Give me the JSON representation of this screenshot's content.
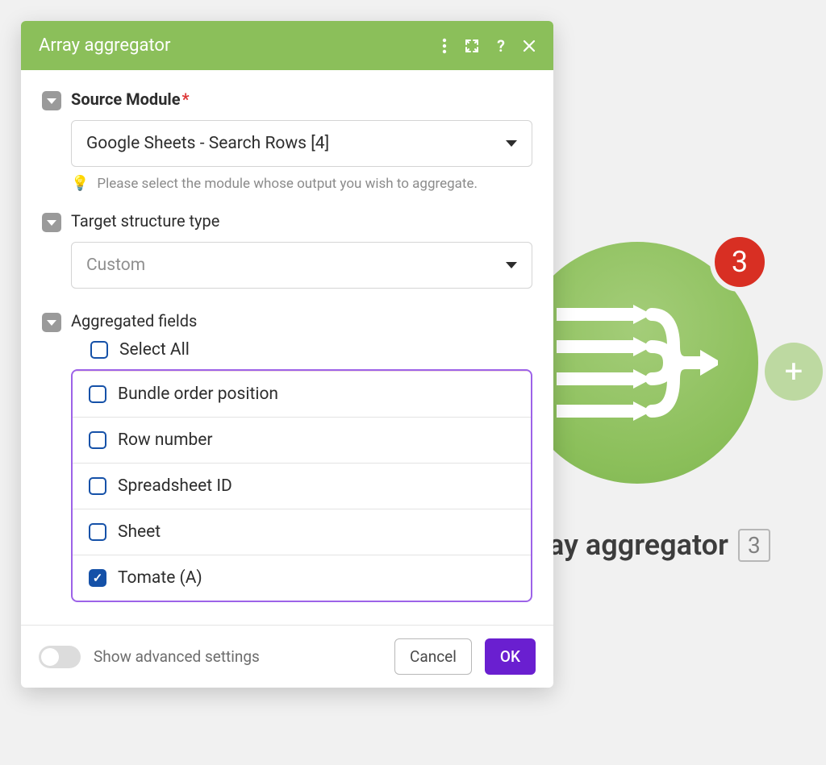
{
  "colors": {
    "header_bg": "#8bbf5a",
    "node_badge_bg": "#d82f23",
    "ok_button_bg": "#6a1fd0",
    "fields_box_border": "#9d63e8",
    "checkbox_color": "#1551a8",
    "page_bg": "#f1f1f1"
  },
  "panel": {
    "title": "Array aggregator"
  },
  "source_module": {
    "label": "Source Module",
    "required": true,
    "selected": "Google Sheets - Search Rows [4]",
    "hint": "Please select the module whose output you wish to aggregate."
  },
  "target_structure": {
    "label": "Target structure type",
    "selected": "Custom"
  },
  "aggregated": {
    "label": "Aggregated fields",
    "select_all_label": "Select All",
    "select_all_checked": false,
    "fields": [
      {
        "label": "Bundle order position",
        "checked": false
      },
      {
        "label": "Row number",
        "checked": false
      },
      {
        "label": "Spreadsheet ID",
        "checked": false
      },
      {
        "label": "Sheet",
        "checked": false
      },
      {
        "label": "Tomate (A)",
        "checked": true
      }
    ]
  },
  "footer": {
    "advanced_label": "Show advanced settings",
    "cancel": "Cancel",
    "ok": "OK"
  },
  "bg_node": {
    "badge": "3",
    "label": "ay aggregator",
    "label_num": "3"
  }
}
